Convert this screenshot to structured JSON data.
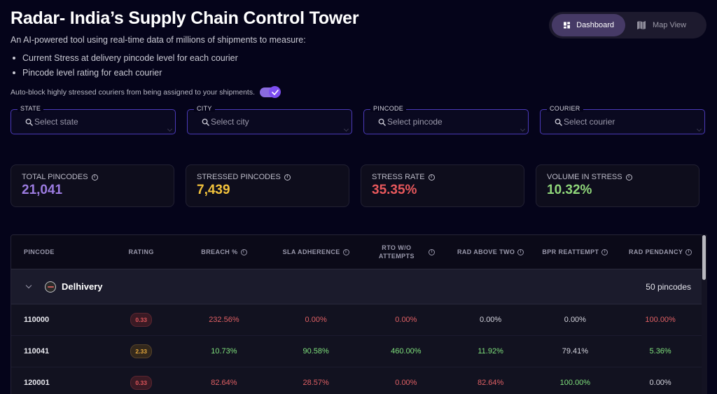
{
  "header": {
    "title": "Radar- India’s Supply Chain Control Tower",
    "subtitle": "An AI-powered tool using real-time data of millions of shipments to measure:",
    "bullets": [
      "Current Stress at delivery pincode level for each courier",
      "Pincode level rating for each courier"
    ],
    "autoblock_label": "Auto-block highly stressed couriers from being assigned to your shipments.",
    "autoblock_enabled": true
  },
  "view_switch": {
    "options": [
      {
        "label": "Dashboard",
        "icon": "dashboard-icon",
        "active": true
      },
      {
        "label": "Map View",
        "icon": "map-icon",
        "active": false
      }
    ]
  },
  "filters": [
    {
      "label": "STATE",
      "placeholder": "Select state"
    },
    {
      "label": "CITY",
      "placeholder": "Select city"
    },
    {
      "label": "PINCODE",
      "placeholder": "Select pincode"
    },
    {
      "label": "COURIER",
      "placeholder": "Select courier"
    }
  ],
  "stats": [
    {
      "label": "TOTAL PINCODES",
      "value": "21,041",
      "color": "#9b7be0"
    },
    {
      "label": "STRESSED PINCODES",
      "value": "7,439",
      "color": "#f2c23c"
    },
    {
      "label": "STRESS RATE",
      "value": "35.35%",
      "color": "#e8585c"
    },
    {
      "label": "VOLUME IN STRESS",
      "value": "10.32%",
      "color": "#8fd67a"
    }
  ],
  "table": {
    "columns": [
      {
        "label": "PINCODE",
        "info": false
      },
      {
        "label": "RATING",
        "info": false
      },
      {
        "label": "BREACH %",
        "info": true
      },
      {
        "label": "SLA ADHERENCE",
        "info": true
      },
      {
        "label": "RTO W/O ATTEMPTS",
        "info": true
      },
      {
        "label": "RAD ABOVE TWO",
        "info": true
      },
      {
        "label": "BPR REATTEMPT",
        "info": true
      },
      {
        "label": "RAD PENDANCY",
        "info": true
      }
    ],
    "group": {
      "courier": "Delhivery",
      "count": "50 pincodes",
      "expanded": true
    },
    "rows": [
      {
        "pincode": "110000",
        "rating": {
          "value": "0.33",
          "level": "red"
        },
        "cells": [
          {
            "value": "232.56%",
            "tone": "red"
          },
          {
            "value": "0.00%",
            "tone": "red"
          },
          {
            "value": "0.00%",
            "tone": "red"
          },
          {
            "value": "0.00%",
            "tone": "gray"
          },
          {
            "value": "0.00%",
            "tone": "gray"
          },
          {
            "value": "100.00%",
            "tone": "red"
          }
        ]
      },
      {
        "pincode": "110041",
        "rating": {
          "value": "2.33",
          "level": "amber"
        },
        "cells": [
          {
            "value": "10.73%",
            "tone": "green"
          },
          {
            "value": "90.58%",
            "tone": "green"
          },
          {
            "value": "460.00%",
            "tone": "green"
          },
          {
            "value": "11.92%",
            "tone": "green"
          },
          {
            "value": "79.41%",
            "tone": "gray"
          },
          {
            "value": "5.36%",
            "tone": "green"
          }
        ]
      },
      {
        "pincode": "120001",
        "rating": {
          "value": "0.33",
          "level": "red"
        },
        "cells": [
          {
            "value": "82.64%",
            "tone": "red"
          },
          {
            "value": "28.57%",
            "tone": "red"
          },
          {
            "value": "0.00%",
            "tone": "red"
          },
          {
            "value": "82.64%",
            "tone": "red"
          },
          {
            "value": "100.00%",
            "tone": "green"
          },
          {
            "value": "0.00%",
            "tone": "gray"
          }
        ]
      }
    ]
  }
}
